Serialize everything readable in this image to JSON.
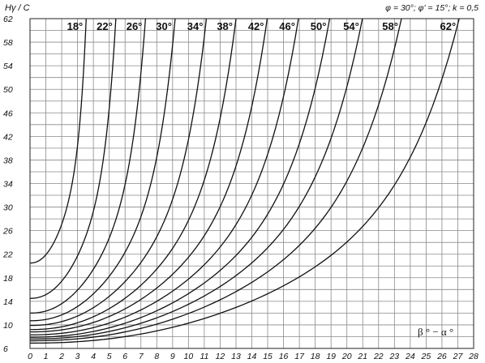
{
  "chart_data": {
    "type": "line",
    "title": "",
    "ylabel": "Hγ / C",
    "xlabel": "β ° − α °",
    "parameters": "φ = 30°; φ' = 15°; k = 0,5",
    "xlim": [
      0,
      28
    ],
    "ylim": [
      6,
      62
    ],
    "x_ticks": [
      0,
      1,
      2,
      3,
      4,
      5,
      6,
      7,
      8,
      9,
      10,
      11,
      12,
      13,
      14,
      15,
      16,
      17,
      18,
      19,
      20,
      21,
      22,
      23,
      24,
      25,
      26,
      27,
      28
    ],
    "y_ticks": [
      6,
      10,
      14,
      18,
      22,
      26,
      30,
      34,
      38,
      42,
      46,
      50,
      54,
      58,
      62
    ],
    "grid": true,
    "series": [
      {
        "name": "18°",
        "y0": 20.5,
        "xa": 3.6
      },
      {
        "name": "22°",
        "y0": 14.5,
        "xa": 5.5
      },
      {
        "name": "26°",
        "y0": 12.0,
        "xa": 7.4
      },
      {
        "name": "30°",
        "y0": 10.7,
        "xa": 9.3
      },
      {
        "name": "34°",
        "y0": 9.9,
        "xa": 11.3
      },
      {
        "name": "38°",
        "y0": 9.2,
        "xa": 13.2
      },
      {
        "name": "42°",
        "y0": 8.8,
        "xa": 15.2
      },
      {
        "name": "46°",
        "y0": 8.3,
        "xa": 17.2
      },
      {
        "name": "50°",
        "y0": 7.9,
        "xa": 19.2
      },
      {
        "name": "54°",
        "y0": 7.6,
        "xa": 21.3
      },
      {
        "name": "58°",
        "y0": 7.3,
        "xa": 23.8
      },
      {
        "name": "62°",
        "y0": 6.9,
        "xa": 27.5
      }
    ]
  }
}
